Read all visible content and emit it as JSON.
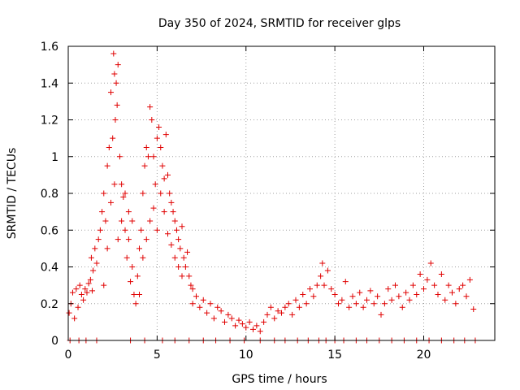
{
  "chart_data": {
    "type": "scatter",
    "title": "Day 350 of 2024, SRMTID for receiver glps",
    "xlabel": "GPS time / hours",
    "ylabel": "SRMTID / TECUs",
    "xlim": [
      0,
      24
    ],
    "ylim": [
      0,
      1.6
    ],
    "x_ticks": [
      0,
      5,
      10,
      15,
      20
    ],
    "x_tick_labels": [
      "0",
      "5",
      "10",
      "15",
      "20"
    ],
    "y_ticks": [
      0,
      0.2,
      0.4,
      0.6,
      0.8,
      1.0,
      1.2,
      1.4,
      1.6
    ],
    "y_tick_labels": [
      "0",
      "0.2",
      "0.4",
      "0.6",
      "0.8",
      "1",
      "1.2",
      "1.4",
      "1.6"
    ],
    "grid": true,
    "marker": "plus",
    "marker_color": "#e00000",
    "series": [
      {
        "name": "SRMTID",
        "points": [
          [
            0.05,
            0.15
          ],
          [
            0.15,
            0.2
          ],
          [
            0.25,
            0.26
          ],
          [
            0.35,
            0.12
          ],
          [
            0.45,
            0.28
          ],
          [
            0.55,
            0.18
          ],
          [
            0.65,
            0.3
          ],
          [
            0.75,
            0.25
          ],
          [
            0.85,
            0.22
          ],
          [
            0.95,
            0.28
          ],
          [
            1.05,
            0.26
          ],
          [
            1.15,
            0.31
          ],
          [
            1.25,
            0.33
          ],
          [
            1.35,
            0.27
          ],
          [
            1.3,
            0.45
          ],
          [
            1.4,
            0.38
          ],
          [
            1.5,
            0.5
          ],
          [
            1.6,
            0.42
          ],
          [
            1.7,
            0.55
          ],
          [
            1.8,
            0.6
          ],
          [
            1.9,
            0.7
          ],
          [
            2.0,
            0.8
          ],
          [
            2.1,
            0.65
          ],
          [
            2.2,
            0.95
          ],
          [
            2.3,
            1.05
          ],
          [
            2.4,
            1.35
          ],
          [
            2.5,
            1.1
          ],
          [
            2.55,
            1.56
          ],
          [
            2.6,
            1.45
          ],
          [
            2.65,
            1.2
          ],
          [
            2.7,
            1.4
          ],
          [
            2.75,
            1.28
          ],
          [
            2.8,
            1.5
          ],
          [
            2.9,
            1.0
          ],
          [
            3.0,
            0.85
          ],
          [
            3.1,
            0.78
          ],
          [
            3.2,
            0.6
          ],
          [
            3.3,
            0.45
          ],
          [
            3.4,
            0.55
          ],
          [
            3.5,
            0.32
          ],
          [
            3.6,
            0.4
          ],
          [
            3.7,
            0.25
          ],
          [
            3.8,
            0.2
          ],
          [
            2.0,
            0.3
          ],
          [
            2.2,
            0.5
          ],
          [
            2.4,
            0.75
          ],
          [
            2.6,
            0.85
          ],
          [
            2.8,
            0.55
          ],
          [
            3.0,
            0.65
          ],
          [
            3.2,
            0.8
          ],
          [
            3.4,
            0.7
          ],
          [
            3.6,
            0.65
          ],
          [
            3.9,
            0.35
          ],
          [
            4.0,
            0.5
          ],
          [
            4.1,
            0.6
          ],
          [
            4.2,
            0.8
          ],
          [
            4.3,
            0.95
          ],
          [
            4.4,
            1.05
          ],
          [
            4.5,
            1.0
          ],
          [
            4.6,
            1.27
          ],
          [
            4.7,
            1.2
          ],
          [
            4.8,
            1.0
          ],
          [
            4.9,
            0.85
          ],
          [
            5.0,
            1.1
          ],
          [
            5.1,
            1.16
          ],
          [
            5.2,
            1.05
          ],
          [
            5.3,
            0.95
          ],
          [
            5.4,
            0.88
          ],
          [
            5.5,
            1.12
          ],
          [
            5.6,
            0.9
          ],
          [
            5.7,
            0.8
          ],
          [
            5.8,
            0.75
          ],
          [
            5.9,
            0.7
          ],
          [
            6.0,
            0.65
          ],
          [
            6.1,
            0.6
          ],
          [
            6.2,
            0.55
          ],
          [
            6.3,
            0.5
          ],
          [
            6.4,
            0.62
          ],
          [
            6.5,
            0.45
          ],
          [
            6.6,
            0.4
          ],
          [
            6.7,
            0.48
          ],
          [
            6.8,
            0.35
          ],
          [
            6.9,
            0.3
          ],
          [
            7.0,
            0.28
          ],
          [
            4.0,
            0.25
          ],
          [
            4.2,
            0.45
          ],
          [
            4.4,
            0.55
          ],
          [
            4.6,
            0.65
          ],
          [
            4.8,
            0.72
          ],
          [
            5.0,
            0.6
          ],
          [
            5.2,
            0.8
          ],
          [
            5.4,
            0.7
          ],
          [
            5.6,
            0.58
          ],
          [
            5.8,
            0.52
          ],
          [
            6.0,
            0.45
          ],
          [
            6.2,
            0.4
          ],
          [
            6.4,
            0.35
          ],
          [
            7.0,
            0.2
          ],
          [
            7.2,
            0.24
          ],
          [
            7.4,
            0.18
          ],
          [
            7.6,
            0.22
          ],
          [
            7.8,
            0.15
          ],
          [
            8.0,
            0.2
          ],
          [
            8.2,
            0.12
          ],
          [
            8.4,
            0.18
          ],
          [
            8.6,
            0.16
          ],
          [
            8.8,
            0.1
          ],
          [
            9.0,
            0.14
          ],
          [
            9.2,
            0.12
          ],
          [
            9.4,
            0.08
          ],
          [
            9.6,
            0.11
          ],
          [
            9.8,
            0.09
          ],
          [
            10.0,
            0.07
          ],
          [
            10.2,
            0.1
          ],
          [
            10.4,
            0.06
          ],
          [
            10.6,
            0.08
          ],
          [
            10.8,
            0.05
          ],
          [
            11.0,
            0.1
          ],
          [
            11.2,
            0.14
          ],
          [
            11.4,
            0.18
          ],
          [
            11.6,
            0.12
          ],
          [
            11.8,
            0.16
          ],
          [
            12.0,
            0.15
          ],
          [
            12.2,
            0.18
          ],
          [
            12.4,
            0.2
          ],
          [
            12.6,
            0.14
          ],
          [
            12.8,
            0.22
          ],
          [
            13.0,
            0.18
          ],
          [
            13.2,
            0.25
          ],
          [
            13.4,
            0.2
          ],
          [
            13.6,
            0.28
          ],
          [
            13.8,
            0.24
          ],
          [
            14.0,
            0.3
          ],
          [
            14.2,
            0.35
          ],
          [
            14.3,
            0.42
          ],
          [
            14.4,
            0.3
          ],
          [
            14.6,
            0.38
          ],
          [
            14.8,
            0.28
          ],
          [
            15.0,
            0.25
          ],
          [
            15.2,
            0.2
          ],
          [
            15.4,
            0.22
          ],
          [
            15.6,
            0.32
          ],
          [
            15.8,
            0.18
          ],
          [
            16.0,
            0.24
          ],
          [
            16.2,
            0.2
          ],
          [
            16.4,
            0.26
          ],
          [
            16.6,
            0.18
          ],
          [
            16.8,
            0.22
          ],
          [
            17.0,
            0.27
          ],
          [
            17.2,
            0.2
          ],
          [
            17.4,
            0.24
          ],
          [
            17.6,
            0.14
          ],
          [
            17.8,
            0.2
          ],
          [
            18.0,
            0.28
          ],
          [
            18.2,
            0.22
          ],
          [
            18.4,
            0.3
          ],
          [
            18.6,
            0.24
          ],
          [
            18.8,
            0.18
          ],
          [
            19.0,
            0.26
          ],
          [
            19.2,
            0.22
          ],
          [
            19.4,
            0.3
          ],
          [
            19.6,
            0.25
          ],
          [
            19.8,
            0.36
          ],
          [
            20.0,
            0.28
          ],
          [
            20.2,
            0.33
          ],
          [
            20.4,
            0.42
          ],
          [
            20.6,
            0.3
          ],
          [
            20.8,
            0.25
          ],
          [
            21.0,
            0.36
          ],
          [
            21.2,
            0.22
          ],
          [
            21.4,
            0.3
          ],
          [
            21.6,
            0.26
          ],
          [
            21.8,
            0.2
          ],
          [
            22.0,
            0.28
          ],
          [
            22.2,
            0.3
          ],
          [
            22.4,
            0.24
          ],
          [
            22.6,
            0.33
          ],
          [
            22.8,
            0.17
          ],
          [
            0.1,
            0.0
          ],
          [
            0.6,
            0.0
          ],
          [
            1.0,
            0.0
          ],
          [
            1.6,
            0.0
          ],
          [
            3.5,
            0.0
          ],
          [
            4.3,
            0.0
          ],
          [
            5.3,
            0.0
          ],
          [
            6.0,
            0.0
          ],
          [
            6.8,
            0.0
          ],
          [
            7.6,
            0.0
          ],
          [
            8.3,
            0.0
          ],
          [
            9.1,
            0.0
          ],
          [
            9.9,
            0.0
          ],
          [
            10.8,
            0.0
          ],
          [
            11.6,
            0.0
          ],
          [
            12.2,
            0.0
          ],
          [
            12.9,
            0.0
          ],
          [
            13.5,
            0.0
          ],
          [
            14.1,
            0.0
          ],
          [
            14.5,
            0.0
          ],
          [
            15.0,
            0.0
          ],
          [
            15.5,
            0.0
          ],
          [
            16.2,
            0.0
          ],
          [
            16.8,
            0.0
          ],
          [
            17.5,
            0.0
          ],
          [
            18.2,
            0.0
          ],
          [
            18.9,
            0.0
          ],
          [
            19.6,
            0.0
          ],
          [
            20.3,
            0.0
          ],
          [
            21.0,
            0.0
          ],
          [
            21.7,
            0.0
          ],
          [
            22.3,
            0.0
          ],
          [
            22.9,
            0.0
          ]
        ]
      }
    ]
  }
}
